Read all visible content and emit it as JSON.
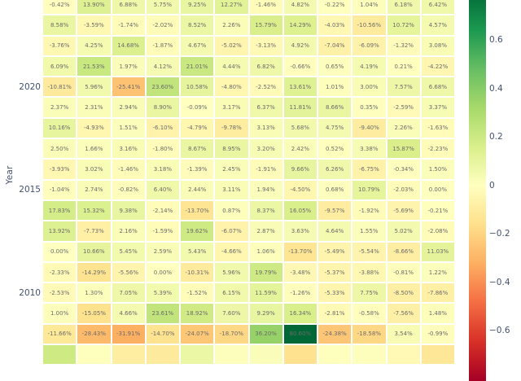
{
  "figure": {
    "ylabel": "Year",
    "background": "#ffffff",
    "tick_color": "#42516d",
    "cell_text_color": "#6b6b6b"
  },
  "chart_data": {
    "type": "heatmap",
    "title": "",
    "xlabel": "",
    "ylabel": "Year",
    "grid": "white 2px gaps between cells",
    "legend_position": "colorbar right",
    "n_columns": 12,
    "n_rows_visible": 18,
    "yticks": [
      {
        "label": "2020",
        "row_index": 4
      },
      {
        "label": "2015",
        "row_index": 9
      },
      {
        "label": "2010",
        "row_index": 14
      }
    ],
    "values_pct": [
      [
        -0.42,
        13.9,
        6.88,
        5.75,
        9.25,
        12.27,
        -1.46,
        4.82,
        -0.22,
        1.04,
        6.18,
        6.42
      ],
      [
        8.58,
        -3.59,
        -1.74,
        -2.02,
        8.52,
        2.26,
        15.79,
        14.29,
        -4.03,
        -10.56,
        10.72,
        4.57
      ],
      [
        -3.76,
        4.25,
        14.68,
        -1.87,
        4.67,
        -5.02,
        -3.13,
        4.92,
        -7.04,
        -6.09,
        -1.32,
        3.08
      ],
      [
        6.09,
        21.53,
        1.97,
        4.12,
        21.01,
        4.44,
        6.82,
        -0.66,
        0.65,
        4.19,
        0.21,
        -4.22
      ],
      [
        -10.81,
        5.96,
        -25.41,
        23.6,
        10.58,
        -4.8,
        -2.52,
        13.61,
        1.01,
        3.0,
        7.57,
        6.68
      ],
      [
        2.37,
        2.31,
        2.94,
        8.9,
        -0.09,
        3.17,
        6.37,
        11.81,
        8.66,
        0.35,
        -2.59,
        3.37
      ],
      [
        10.16,
        -4.93,
        1.51,
        -6.1,
        -4.79,
        -9.78,
        3.13,
        5.68,
        4.75,
        -9.4,
        2.26,
        -1.63
      ],
      [
        2.5,
        1.66,
        3.16,
        -1.8,
        8.67,
        8.95,
        3.2,
        2.42,
        0.52,
        3.38,
        15.87,
        -2.23
      ],
      [
        -3.93,
        3.02,
        -1.46,
        3.18,
        -1.39,
        2.45,
        -1.91,
        9.66,
        6.26,
        -6.75,
        -0.34,
        1.5
      ],
      [
        -1.04,
        2.74,
        -0.82,
        6.4,
        2.44,
        3.11,
        1.94,
        -4.5,
        0.68,
        10.79,
        -2.03,
        0.0
      ],
      [
        17.83,
        15.32,
        9.38,
        -2.14,
        -13.7,
        0.87,
        8.37,
        16.05,
        -9.57,
        -1.92,
        -5.69,
        -0.21
      ],
      [
        13.92,
        -7.73,
        2.16,
        -1.59,
        19.62,
        -6.07,
        2.87,
        3.63,
        4.64,
        1.55,
        5.02,
        -2.08
      ],
      [
        0.0,
        10.66,
        5.45,
        2.59,
        5.43,
        -4.66,
        1.06,
        -13.7,
        -5.49,
        -5.54,
        -8.66,
        11.03
      ],
      [
        -2.33,
        -14.29,
        -5.56,
        0.0,
        -10.31,
        5.96,
        19.79,
        -3.48,
        -5.37,
        -3.88,
        -0.81,
        1.22
      ],
      [
        -2.53,
        1.3,
        7.05,
        5.39,
        -1.52,
        6.15,
        11.59,
        -1.26,
        -5.33,
        7.75,
        -8.5,
        -7.86
      ],
      [
        1.0,
        -15.05,
        4.66,
        23.61,
        18.92,
        7.6,
        9.29,
        16.34,
        -2.81,
        -0.58,
        -7.56,
        1.48
      ],
      [
        -11.66,
        -28.43,
        -31.91,
        -14.7,
        -24.07,
        -18.7,
        36.2,
        80.6,
        -24.38,
        -18.58,
        3.54,
        -0.99
      ]
    ],
    "bottom_partial_row_pct_estimated": [
      20,
      0.5,
      -9,
      -11,
      8,
      1,
      2,
      -15,
      0.5,
      1,
      -3,
      -12
    ],
    "value_format": "{:.2f}%",
    "colorscale": {
      "name": "RdYlGn",
      "vmin": -0.8067,
      "vmax": 0.8067,
      "anchors": [
        "#a50026",
        "#d73027",
        "#f46d43",
        "#fdae61",
        "#fee08b",
        "#ffffbf",
        "#d9ef8b",
        "#a6d96a",
        "#66bd63",
        "#1a9850",
        "#006837"
      ]
    },
    "colorbar_ticks": [
      {
        "label": "0.6",
        "value": 0.6
      },
      {
        "label": "0.4",
        "value": 0.4
      },
      {
        "label": "0.2",
        "value": 0.2
      },
      {
        "label": "0",
        "value": 0.0
      },
      {
        "label": "−0.2",
        "value": -0.2
      },
      {
        "label": "−0.4",
        "value": -0.4
      },
      {
        "label": "−0.6",
        "value": -0.6
      }
    ]
  }
}
